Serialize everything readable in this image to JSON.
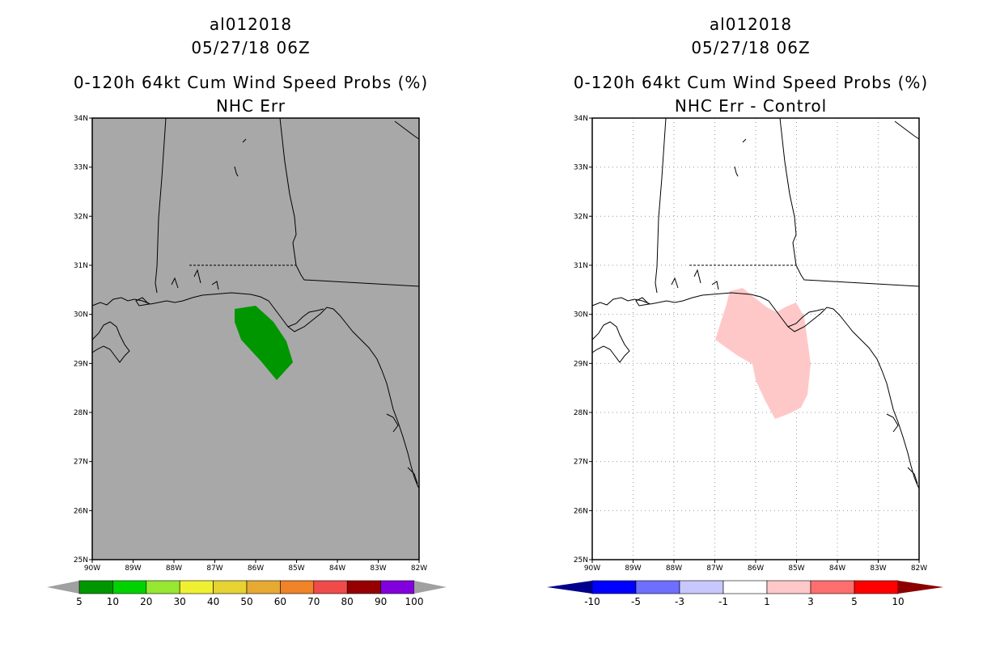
{
  "panels": [
    {
      "title_lines": [
        "al012018",
        "05/27/18 06Z"
      ],
      "subtitle_lines": [
        "0-120h 64kt Cum Wind Speed Probs (%)",
        "NHC Err"
      ],
      "background": "#a8a8a8",
      "grid": false,
      "shaded_region_color": "#009600",
      "shaded_region_label": "5-10",
      "lat_labels": [
        "34N",
        "33N",
        "32N",
        "31N",
        "30N",
        "29N",
        "28N",
        "27N",
        "26N",
        "25N"
      ],
      "lon_labels": [
        "90W",
        "89W",
        "88W",
        "87W",
        "86W",
        "85W",
        "84W",
        "83W",
        "82W"
      ],
      "colorbar": {
        "labels": [
          "5",
          "10",
          "20",
          "30",
          "40",
          "50",
          "60",
          "70",
          "80",
          "90",
          "100"
        ],
        "colors": [
          "#009600",
          "#00d200",
          "#96e632",
          "#f0f032",
          "#e6d232",
          "#e6aa32",
          "#f08228",
          "#f04b4b",
          "#960000",
          "#8200dc"
        ],
        "end_arrow_color": "#a0a0a0"
      }
    },
    {
      "title_lines": [
        "al012018",
        "05/27/18 06Z"
      ],
      "subtitle_lines": [
        "0-120h 64kt Cum Wind Speed Probs (%)",
        "NHC Err - Control"
      ],
      "background": "#ffffff",
      "grid": true,
      "shaded_region_color": "#ffc8c8",
      "shaded_region_label": "1-3",
      "lat_labels": [
        "34N",
        "33N",
        "32N",
        "31N",
        "30N",
        "29N",
        "28N",
        "27N",
        "26N",
        "25N"
      ],
      "lon_labels": [
        "90W",
        "89W",
        "88W",
        "87W",
        "86W",
        "85W",
        "84W",
        "83W",
        "82W"
      ],
      "colorbar": {
        "labels": [
          "-10",
          "-5",
          "-3",
          "-1",
          "1",
          "3",
          "5",
          "10"
        ],
        "colors": [
          "#0000ff",
          "#6e6eff",
          "#c8c8ff",
          "#ffffff",
          "#ffc8c8",
          "#ff6e6e",
          "#ff0000"
        ],
        "left_arrow_color": "#00008c",
        "right_arrow_color": "#8c0000"
      }
    }
  ]
}
